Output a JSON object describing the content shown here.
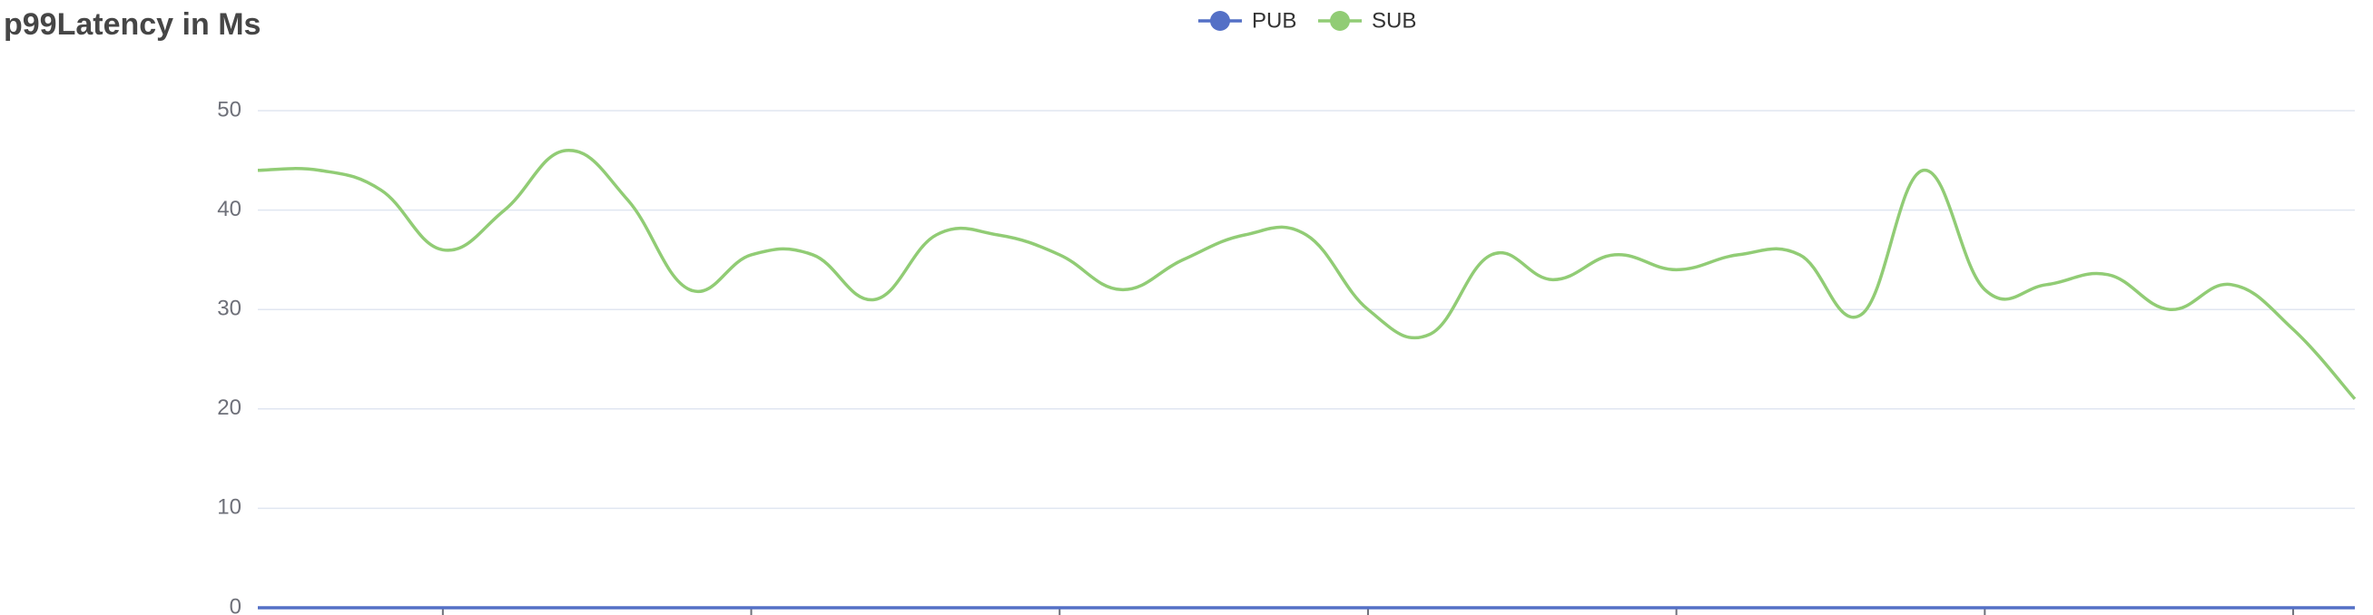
{
  "chart_data": {
    "type": "line",
    "title": "p99Latency in Ms",
    "categories": [
      null,
      null,
      null,
      null,
      null,
      null,
      null,
      null,
      null,
      null,
      null,
      null,
      null,
      null,
      null,
      null,
      null,
      null,
      null,
      null,
      null,
      null,
      null,
      null,
      null,
      null,
      null,
      null,
      null,
      null,
      null,
      null,
      null,
      null,
      null
    ],
    "series": [
      {
        "name": "PUB",
        "color": "#5470c6",
        "values": [
          0,
          0,
          0,
          0,
          0,
          0,
          0,
          0,
          0,
          0,
          0,
          0,
          0,
          0,
          0,
          0,
          0,
          0,
          0,
          0,
          0,
          0,
          0,
          0,
          0,
          0,
          0,
          0,
          0,
          0,
          0,
          0,
          0,
          0,
          0
        ]
      },
      {
        "name": "SUB",
        "color": "#91cc75",
        "values": [
          44,
          44,
          42,
          36,
          40,
          46,
          41,
          32,
          35.5,
          35.5,
          31,
          37.5,
          37.5,
          35.5,
          32,
          35,
          37.5,
          37.5,
          30,
          27.5,
          35.5,
          33,
          35.5,
          34,
          35.5,
          35.5,
          29.5,
          44,
          32,
          32.5,
          33.5,
          30,
          32.5,
          28,
          21
        ]
      }
    ],
    "ylim": [
      0,
      50
    ],
    "yticks": [
      0,
      10,
      20,
      30,
      40,
      50
    ],
    "grid": true,
    "smooth": true,
    "legend": "top"
  }
}
